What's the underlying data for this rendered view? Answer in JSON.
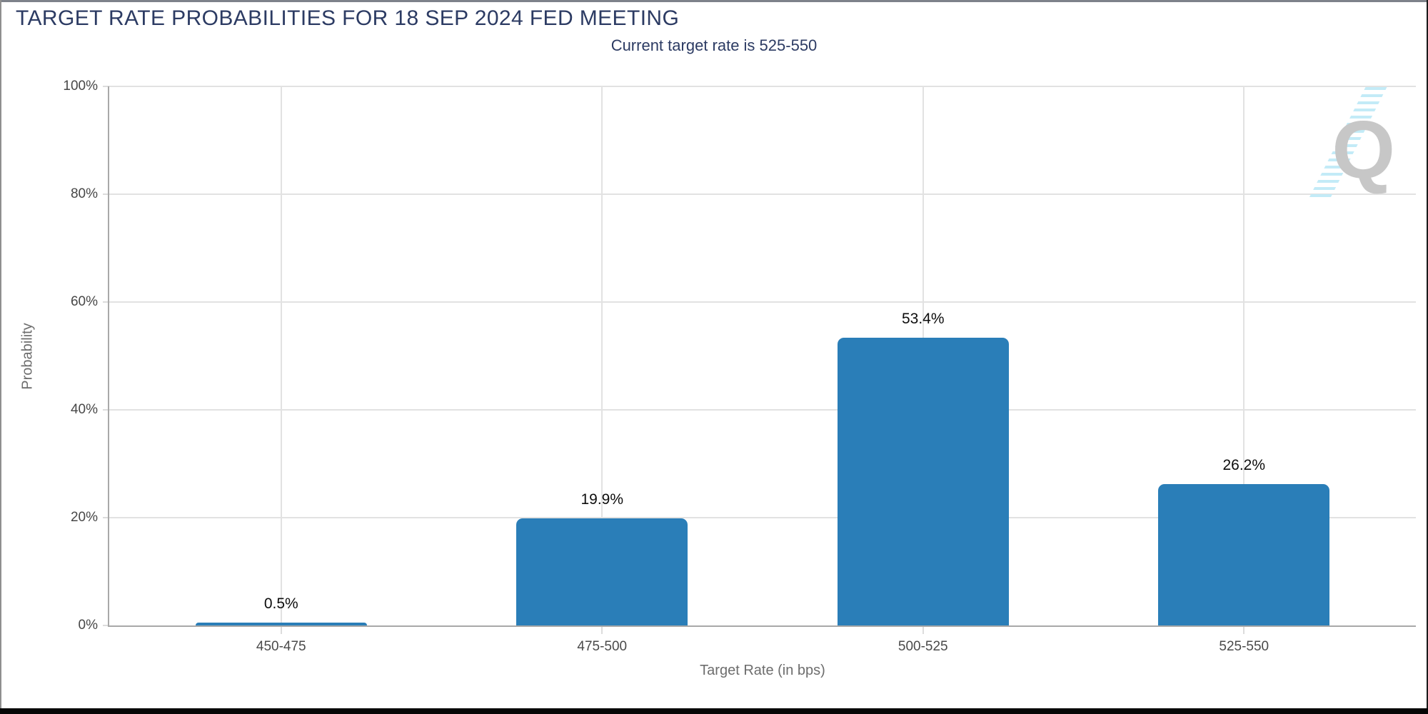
{
  "header": {
    "title": "TARGET RATE PROBABILITIES FOR 18 SEP 2024 FED MEETING",
    "subtitle": "Current target rate is 525-550"
  },
  "watermark": {
    "letter": "Q"
  },
  "colors": {
    "bar": "#2a7eb8",
    "title_text": "#2c3b63",
    "stripe_accent": "#c3ebf7",
    "watermark_gray": "#c7c7c7"
  },
  "chart_data": {
    "type": "bar",
    "title": "TARGET RATE PROBABILITIES FOR 18 SEP 2024 FED MEETING",
    "subtitle": "Current target rate is 525-550",
    "categories": [
      "450-475",
      "475-500",
      "500-525",
      "525-550"
    ],
    "values": [
      0.5,
      19.9,
      53.4,
      26.2
    ],
    "value_labels": [
      "0.5%",
      "19.9%",
      "53.4%",
      "26.2%"
    ],
    "xlabel": "Target Rate (in bps)",
    "ylabel": "Probability",
    "ylim": [
      0,
      100
    ],
    "yticks": [
      0,
      20,
      40,
      60,
      80,
      100
    ],
    "ytick_labels": [
      "0%",
      "20%",
      "40%",
      "60%",
      "80%",
      "100%"
    ],
    "grid": true,
    "legend": "none",
    "bar_color": "#2a7eb8"
  }
}
